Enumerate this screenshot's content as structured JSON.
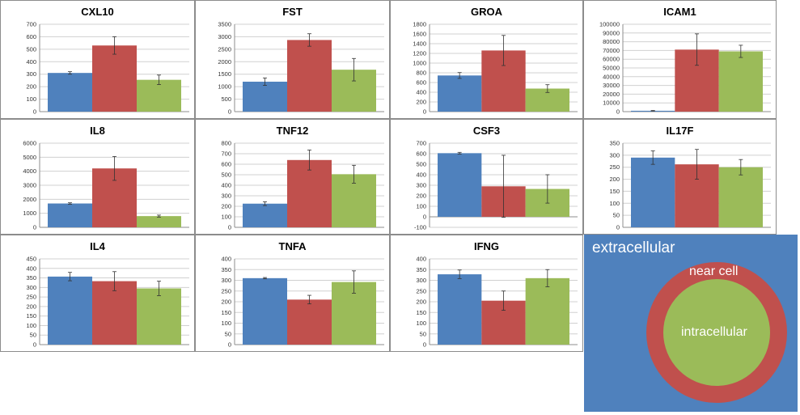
{
  "colors": {
    "extracellular": "#4f81bd",
    "near_cell": "#c0504d",
    "intracellular": "#9bbb59"
  },
  "legend": {
    "extracellular": "extracellular",
    "near_cell": "near cell",
    "intracellular": "intracellular"
  },
  "chart_data": [
    {
      "type": "bar",
      "title": "CXL10",
      "ylim": [
        0,
        700
      ],
      "ticks": [
        0,
        100,
        200,
        300,
        400,
        500,
        600,
        700
      ],
      "series": [
        {
          "values": [
            310
          ],
          "err": [
            10
          ]
        },
        {
          "values": [
            530
          ],
          "err": [
            70
          ]
        },
        {
          "values": [
            255
          ],
          "err": [
            38
          ]
        }
      ]
    },
    {
      "type": "bar",
      "title": "FST",
      "ylim": [
        0,
        3500
      ],
      "ticks": [
        0,
        500,
        1000,
        1500,
        2000,
        2500,
        3000,
        3500
      ],
      "series": [
        {
          "values": [
            1200
          ],
          "err": [
            150
          ]
        },
        {
          "values": [
            2870
          ],
          "err": [
            250
          ]
        },
        {
          "values": [
            1680
          ],
          "err": [
            450
          ]
        }
      ]
    },
    {
      "type": "bar",
      "title": "GROA",
      "ylim": [
        0,
        1800
      ],
      "ticks": [
        0,
        200,
        400,
        600,
        800,
        1000,
        1200,
        1400,
        1600,
        1800
      ],
      "series": [
        {
          "values": [
            745
          ],
          "err": [
            60
          ]
        },
        {
          "values": [
            1260
          ],
          "err": [
            310
          ]
        },
        {
          "values": [
            475
          ],
          "err": [
            80
          ]
        }
      ]
    },
    {
      "type": "bar",
      "title": "ICAM1",
      "ylim": [
        0,
        100000
      ],
      "ticks": [
        0,
        10000,
        20000,
        30000,
        40000,
        50000,
        60000,
        70000,
        80000,
        90000,
        100000
      ],
      "series": [
        {
          "values": [
            1000
          ],
          "err": [
            300
          ]
        },
        {
          "values": [
            71000
          ],
          "err": [
            18000
          ]
        },
        {
          "values": [
            69000
          ],
          "err": [
            7000
          ]
        }
      ]
    },
    {
      "type": "bar",
      "title": "IL8",
      "ylim": [
        0,
        6000
      ],
      "ticks": [
        0,
        1000,
        2000,
        3000,
        4000,
        5000,
        6000
      ],
      "series": [
        {
          "values": [
            1700
          ],
          "err": [
            50
          ]
        },
        {
          "values": [
            4200
          ],
          "err": [
            850
          ]
        },
        {
          "values": [
            800
          ],
          "err": [
            70
          ]
        }
      ]
    },
    {
      "type": "bar",
      "title": "TNF12",
      "ylim": [
        0,
        800
      ],
      "ticks": [
        0,
        100,
        200,
        300,
        400,
        500,
        600,
        700,
        800
      ],
      "series": [
        {
          "values": [
            225
          ],
          "err": [
            18
          ]
        },
        {
          "values": [
            640
          ],
          "err": [
            95
          ]
        },
        {
          "values": [
            505
          ],
          "err": [
            85
          ]
        }
      ]
    },
    {
      "type": "bar",
      "title": "CSF3",
      "ylim": [
        -100,
        700
      ],
      "ticks": [
        -100,
        0,
        100,
        200,
        300,
        400,
        500,
        600,
        700
      ],
      "series": [
        {
          "values": [
            605
          ],
          "err": [
            8
          ]
        },
        {
          "values": [
            290
          ],
          "err": [
            295
          ]
        },
        {
          "values": [
            265
          ],
          "err": [
            135
          ]
        }
      ]
    },
    {
      "type": "bar",
      "title": "IL17F",
      "ylim": [
        0,
        350
      ],
      "ticks": [
        0,
        50,
        100,
        150,
        200,
        250,
        300,
        350
      ],
      "series": [
        {
          "values": [
            290
          ],
          "err": [
            28
          ]
        },
        {
          "values": [
            262
          ],
          "err": [
            62
          ]
        },
        {
          "values": [
            250
          ],
          "err": [
            32
          ]
        }
      ]
    },
    {
      "type": "bar",
      "title": "IL4",
      "ylim": [
        0,
        450
      ],
      "ticks": [
        0,
        50,
        100,
        150,
        200,
        250,
        300,
        350,
        400,
        450
      ],
      "series": [
        {
          "values": [
            357
          ],
          "err": [
            22
          ]
        },
        {
          "values": [
            333
          ],
          "err": [
            50
          ]
        },
        {
          "values": [
            295
          ],
          "err": [
            38
          ]
        }
      ]
    },
    {
      "type": "bar",
      "title": "TNFA",
      "ylim": [
        0,
        400
      ],
      "ticks": [
        0,
        50,
        100,
        150,
        200,
        250,
        300,
        350,
        400
      ],
      "series": [
        {
          "values": [
            310
          ],
          "err": [
            3
          ]
        },
        {
          "values": [
            210
          ],
          "err": [
            20
          ]
        },
        {
          "values": [
            292
          ],
          "err": [
            52
          ]
        }
      ]
    },
    {
      "type": "bar",
      "title": "IFNG",
      "ylim": [
        0,
        400
      ],
      "ticks": [
        0,
        50,
        100,
        150,
        200,
        250,
        300,
        350,
        400
      ],
      "series": [
        {
          "values": [
            328
          ],
          "err": [
            20
          ]
        },
        {
          "values": [
            205
          ],
          "err": [
            45
          ]
        },
        {
          "values": [
            310
          ],
          "err": [
            40
          ]
        }
      ]
    }
  ]
}
